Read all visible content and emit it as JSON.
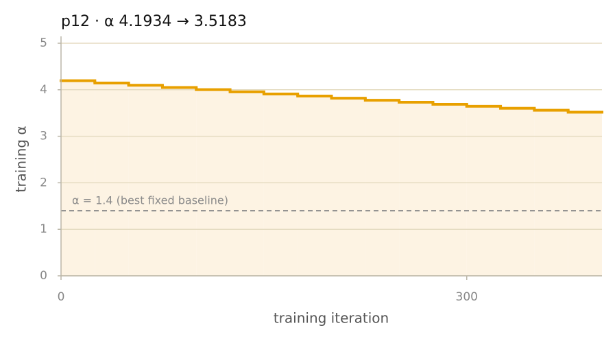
{
  "chart_data": {
    "type": "step",
    "title": "p12   ·   α 4.1934 → 3.5183",
    "x_label": "training iteration",
    "y_label": "training α",
    "x": [
      0,
      25,
      50,
      75,
      100,
      125,
      150,
      175,
      200,
      225,
      250,
      275,
      300,
      325,
      350,
      375
    ],
    "values": [
      4.1934,
      4.145,
      4.096,
      4.049,
      4.002,
      3.955,
      3.909,
      3.864,
      3.819,
      3.774,
      3.731,
      3.687,
      3.644,
      3.602,
      3.56,
      3.5183
    ],
    "color": "#e8a000",
    "fill_color": "#fdf3e3",
    "baseline": {
      "value": 1.4,
      "label": "α = 1.4 (best fixed baseline)"
    },
    "xlim": [
      0,
      400
    ],
    "xticks": [
      0,
      300
    ],
    "ylim": [
      0,
      5
    ],
    "yticks": [
      0,
      1,
      2,
      3,
      4,
      5
    ],
    "grid": true
  }
}
